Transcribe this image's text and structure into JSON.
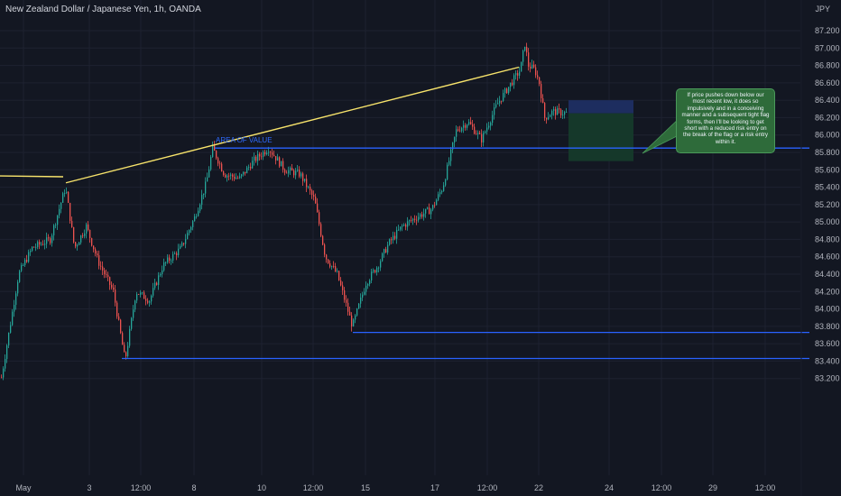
{
  "header": {
    "title": "New Zealand Dollar / Japanese Yen, 1h, OANDA",
    "currency": "JPY"
  },
  "annotations": {
    "area_of_value": "AREA OF VALUE",
    "note": "If price pushes down below our most recent low, it does so impulsively and in a conceiving manner and a subsequent tight flag forms, then I'll be looking to get short with a reduced risk entry on the break of the flag or a risk entry within it."
  },
  "colors": {
    "background": "#131722",
    "grid": "#1e2230",
    "bull": "#26a69a",
    "bear": "#ef5350",
    "trendline": "#f7e36b",
    "level": "#2962ff",
    "axis_text": "#b2b5be",
    "risk_zone": "#1d2e63",
    "reward_zone": "#153a2b",
    "note_bg": "#2e6b3a"
  },
  "chart_data": {
    "type": "candlestick",
    "instrument": "NZDJPY",
    "timeframe": "1h",
    "ylim": [
      83.1,
      87.3
    ],
    "yticks": [
      83.2,
      83.4,
      83.6,
      83.8,
      84.0,
      84.2,
      84.4,
      84.6,
      84.8,
      85.0,
      85.2,
      85.4,
      85.6,
      85.8,
      86.0,
      86.2,
      86.4,
      86.6,
      86.8,
      87.0,
      87.2
    ],
    "xticks": [
      "May",
      "3",
      "12:00",
      "8",
      "10",
      "12:00",
      "15",
      "17",
      "12:00",
      "22",
      "24",
      "12:00",
      "29",
      "12:00"
    ],
    "price_path": [
      [
        0,
        83.15
      ],
      [
        20,
        84.4
      ],
      [
        35,
        84.7
      ],
      [
        55,
        84.8
      ],
      [
        72,
        85.4
      ],
      [
        82,
        84.7
      ],
      [
        95,
        84.95
      ],
      [
        108,
        84.55
      ],
      [
        125,
        84.2
      ],
      [
        138,
        83.4
      ],
      [
        150,
        84.2
      ],
      [
        165,
        84.1
      ],
      [
        180,
        84.5
      ],
      [
        200,
        84.7
      ],
      [
        215,
        85.05
      ],
      [
        228,
        85.45
      ],
      [
        235,
        85.85
      ],
      [
        248,
        85.55
      ],
      [
        265,
        85.5
      ],
      [
        280,
        85.7
      ],
      [
        297,
        85.85
      ],
      [
        315,
        85.6
      ],
      [
        332,
        85.55
      ],
      [
        348,
        85.25
      ],
      [
        360,
        84.6
      ],
      [
        373,
        84.4
      ],
      [
        390,
        83.8
      ],
      [
        405,
        84.3
      ],
      [
        418,
        84.5
      ],
      [
        430,
        84.75
      ],
      [
        445,
        84.95
      ],
      [
        460,
        85.05
      ],
      [
        478,
        85.15
      ],
      [
        490,
        85.4
      ],
      [
        505,
        86.05
      ],
      [
        518,
        86.15
      ],
      [
        533,
        85.95
      ],
      [
        550,
        86.35
      ],
      [
        566,
        86.6
      ],
      [
        576,
        86.75
      ],
      [
        581,
        87.05
      ],
      [
        585,
        86.8
      ],
      [
        592,
        86.75
      ],
      [
        597,
        86.6
      ],
      [
        603,
        86.2
      ],
      [
        612,
        86.27
      ],
      [
        628,
        86.25
      ]
    ],
    "levels": [
      {
        "price": 85.85,
        "x_start_day": 4.4,
        "x_end": "right"
      },
      {
        "price": 83.73,
        "x_start_day": 13.9,
        "x_end": "right"
      },
      {
        "price": 83.43,
        "x_start_day": 4.8,
        "x_end": "right"
      }
    ],
    "trendlines": [
      {
        "points": [
          [
            0,
            85.53
          ],
          [
            70,
            85.52
          ]
        ]
      },
      {
        "points": [
          [
            73,
            85.45
          ],
          [
            575,
            86.78
          ]
        ]
      }
    ],
    "position_zones": {
      "risk": {
        "from": 86.25,
        "to": 86.4
      },
      "reward": {
        "from": 85.7,
        "to": 86.25
      }
    }
  }
}
